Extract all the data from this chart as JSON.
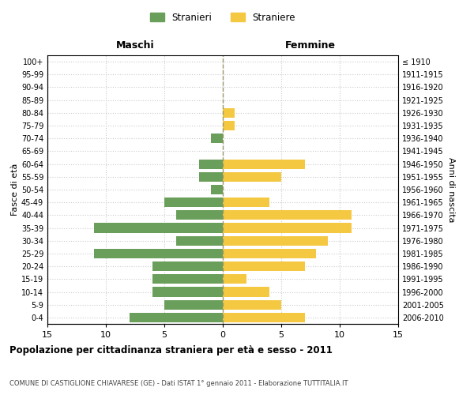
{
  "age_groups": [
    "0-4",
    "5-9",
    "10-14",
    "15-19",
    "20-24",
    "25-29",
    "30-34",
    "35-39",
    "40-44",
    "45-49",
    "50-54",
    "55-59",
    "60-64",
    "65-69",
    "70-74",
    "75-79",
    "80-84",
    "85-89",
    "90-94",
    "95-99",
    "100+"
  ],
  "birth_years": [
    "2006-2010",
    "2001-2005",
    "1996-2000",
    "1991-1995",
    "1986-1990",
    "1981-1985",
    "1976-1980",
    "1971-1975",
    "1966-1970",
    "1961-1965",
    "1956-1960",
    "1951-1955",
    "1946-1950",
    "1941-1945",
    "1936-1940",
    "1931-1935",
    "1926-1930",
    "1921-1925",
    "1916-1920",
    "1911-1915",
    "≤ 1910"
  ],
  "maschi": [
    8,
    5,
    6,
    6,
    6,
    11,
    4,
    11,
    4,
    5,
    1,
    2,
    2,
    0,
    1,
    0,
    0,
    0,
    0,
    0,
    0
  ],
  "femmine": [
    7,
    5,
    4,
    2,
    7,
    8,
    9,
    11,
    11,
    4,
    0,
    5,
    7,
    0,
    0,
    1,
    1,
    0,
    0,
    0,
    0
  ],
  "color_maschi": "#6a9e5b",
  "color_femmine": "#f5c842",
  "title": "Popolazione per cittadinanza straniera per età e sesso - 2011",
  "subtitle": "COMUNE DI CASTIGLIONE CHIAVARESE (GE) - Dati ISTAT 1° gennaio 2011 - Elaborazione TUTTITALIA.IT",
  "xlabel_left": "Maschi",
  "xlabel_right": "Femmine",
  "ylabel_left": "Fasce di età",
  "ylabel_right": "Anni di nascita",
  "legend_maschi": "Stranieri",
  "legend_femmine": "Straniere",
  "xlim": 15,
  "background_color": "#ffffff",
  "grid_color": "#cccccc"
}
